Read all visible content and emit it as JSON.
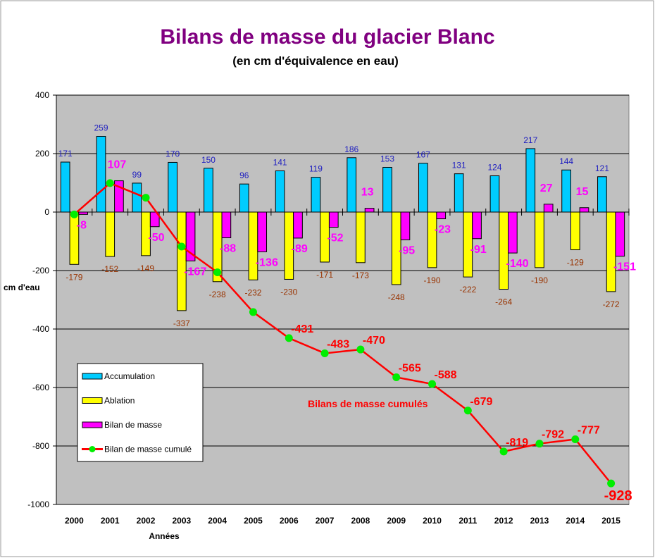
{
  "chart_data": {
    "type": "bar",
    "title": "Bilans de masse du glacier Blanc",
    "subtitle": "(en cm d'équivalence en eau)",
    "xlabel": "Années",
    "ylabel": "cm d'eau",
    "ylim": [
      -1000,
      400
    ],
    "yticks": [
      400,
      200,
      0,
      -200,
      -400,
      -600,
      -800,
      -1000
    ],
    "grid": true,
    "categories": [
      "2000",
      "2001",
      "2002",
      "2003",
      "2004",
      "2005",
      "2006",
      "2007",
      "2008",
      "2009",
      "2010",
      "2011",
      "2012",
      "2013",
      "2014",
      "2015"
    ],
    "series": [
      {
        "name": "Accumulation",
        "type": "bar",
        "color": "#00ccff",
        "label_color": "#2020c0",
        "values": [
          171,
          259,
          99,
          170,
          150,
          96,
          141,
          119,
          186,
          153,
          167,
          131,
          124,
          217,
          144,
          121
        ]
      },
      {
        "name": "Ablation",
        "type": "bar",
        "color": "#ffff00",
        "label_color": "#993300",
        "values": [
          -179,
          -152,
          -149,
          -337,
          -238,
          -232,
          -230,
          -171,
          -173,
          -248,
          -190,
          -222,
          -264,
          -190,
          -129,
          -272
        ]
      },
      {
        "name": "Bilan de masse",
        "type": "bar",
        "color": "#ff00ff",
        "label_color": "#ff00ff",
        "values": [
          -8,
          107,
          -50,
          -167,
          -88,
          -136,
          -89,
          -52,
          13,
          -95,
          -23,
          -91,
          -140,
          27,
          15,
          -151
        ]
      },
      {
        "name": "Bilan de masse cumulé",
        "type": "line",
        "color": "#ff0000",
        "marker_color": "#00ee00",
        "values": [
          -8,
          99,
          49,
          -118,
          -206,
          -342,
          -431,
          -483,
          -470,
          -565,
          -588,
          -679,
          -819,
          -792,
          -777,
          -928
        ],
        "labeled_from": "2006"
      }
    ],
    "annotation": "Bilans de masse cumulés",
    "legend_position": "bottom-left"
  }
}
